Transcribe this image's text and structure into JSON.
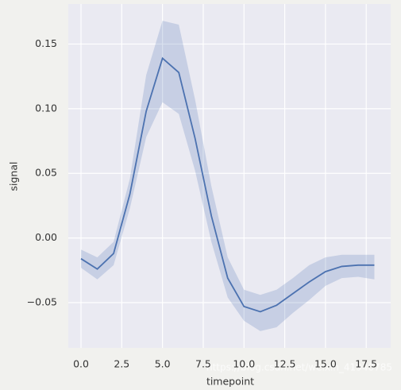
{
  "chart_data": {
    "type": "line",
    "xlabel": "timepoint",
    "ylabel": "signal",
    "watermark": "https://blog.csdn.net/weixin_41940785",
    "x": [
      0,
      1,
      2,
      3,
      4,
      5,
      6,
      7,
      8,
      9,
      10,
      11,
      12,
      13,
      14,
      15,
      16,
      17,
      18
    ],
    "series": [
      {
        "color": "#4c72b0",
        "values": [
          -0.016,
          -0.024,
          -0.012,
          0.034,
          0.098,
          0.139,
          0.128,
          0.077,
          0.017,
          -0.031,
          -0.053,
          -0.057,
          -0.052,
          -0.043,
          -0.034,
          -0.026,
          -0.022,
          -0.021,
          -0.021
        ],
        "lower": [
          -0.023,
          -0.032,
          -0.021,
          0.023,
          0.078,
          0.105,
          0.096,
          0.052,
          -0.003,
          -0.046,
          -0.064,
          -0.072,
          -0.069,
          -0.058,
          -0.048,
          -0.037,
          -0.031,
          -0.03,
          -0.032
        ],
        "upper": [
          -0.009,
          -0.015,
          -0.003,
          0.046,
          0.126,
          0.168,
          0.165,
          0.107,
          0.04,
          -0.015,
          -0.04,
          -0.044,
          -0.04,
          -0.031,
          -0.021,
          -0.015,
          -0.013,
          -0.013,
          -0.013
        ]
      }
    ],
    "xlim": [
      -0.78,
      19.0
    ],
    "ylim": [
      -0.085,
      0.181
    ],
    "xticks": [
      {
        "value": 0,
        "label": "0.0"
      },
      2.5,
      {
        "value": 5,
        "label": "5.0"
      },
      7.5,
      {
        "value": 10,
        "label": "10.0"
      },
      12.5,
      {
        "value": 15,
        "label": "15.0"
      },
      17.5
    ],
    "yticks": [
      {
        "value": -0.05,
        "label": "−0.05"
      },
      {
        "value": 0,
        "label": "0.00"
      },
      0.05,
      {
        "value": 0.1,
        "label": "0.10"
      },
      0.15
    ],
    "grid": true
  }
}
